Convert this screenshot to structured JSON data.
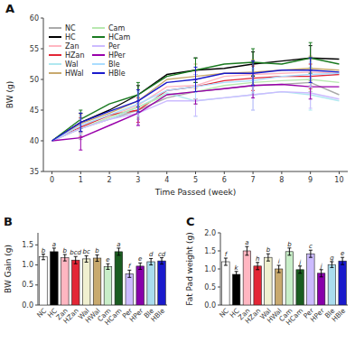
{
  "chart_data": [
    {
      "type": "line",
      "title": "A",
      "xlabel": "Time Passed (week)",
      "ylabel": "BW (g)",
      "x": [
        0,
        1,
        2,
        3,
        4,
        5,
        6,
        7,
        8,
        9,
        10
      ],
      "xlim": [
        -0.3,
        10.3
      ],
      "xticks": [
        0,
        1,
        2,
        3,
        4,
        5,
        6,
        7,
        8,
        9,
        10
      ],
      "ylim": [
        35,
        60
      ],
      "yticks": [
        35,
        40,
        45,
        50,
        55,
        60
      ],
      "legend": "upper-left",
      "series": [
        {
          "name": "NC",
          "color": "#aaaaaa",
          "values": [
            40.0,
            42.0,
            43.5,
            45.0,
            47.0,
            48.0,
            48.5,
            49.0,
            49.2,
            49.5,
            47.5
          ],
          "errors": [
            null,
            1.8,
            null,
            1.5,
            null,
            1.5,
            null,
            1.5,
            null,
            1.5,
            null
          ]
        },
        {
          "name": "HC",
          "color": "#000000",
          "values": [
            40.0,
            43.0,
            45.0,
            47.5,
            50.8,
            51.5,
            51.8,
            52.5,
            53.0,
            53.5,
            53.3
          ],
          "errors": [
            null,
            1.5,
            null,
            1.5,
            null,
            2.0,
            null,
            2.0,
            null,
            2.0,
            null
          ]
        },
        {
          "name": "Zan",
          "color": "#ffb6c1",
          "values": [
            40.0,
            42.5,
            44.0,
            45.8,
            48.8,
            49.0,
            50.5,
            50.8,
            51.0,
            51.2,
            51.0
          ],
          "errors": [
            null,
            1.5,
            null,
            1.8,
            null,
            2.2,
            null,
            2.0,
            null,
            2.2,
            null
          ]
        },
        {
          "name": "HZan",
          "color": "#e32636",
          "values": [
            40.0,
            42.2,
            44.2,
            45.0,
            48.2,
            48.8,
            49.8,
            50.2,
            50.5,
            50.5,
            50.8
          ],
          "errors": [
            null,
            1.5,
            null,
            2.0,
            null,
            2.0,
            null,
            2.0,
            null,
            2.0,
            null
          ]
        },
        {
          "name": "Wal",
          "color": "#b0e8f0",
          "values": [
            40.0,
            42.0,
            43.5,
            45.5,
            47.8,
            46.5,
            47.0,
            47.5,
            48.0,
            47.5,
            46.5
          ],
          "errors": [
            null,
            1.5,
            null,
            2.0,
            null,
            2.5,
            null,
            2.5,
            null,
            2.5,
            null
          ]
        },
        {
          "name": "HWal",
          "color": "#c8a96e",
          "values": [
            40.0,
            42.8,
            44.5,
            46.5,
            50.0,
            50.5,
            51.0,
            51.2,
            51.5,
            51.8,
            51.5
          ],
          "errors": [
            null,
            1.5,
            null,
            1.8,
            null,
            2.0,
            null,
            2.0,
            null,
            2.0,
            null
          ]
        },
        {
          "name": "Cam",
          "color": "#b8e8b0",
          "values": [
            40.0,
            42.0,
            43.8,
            45.5,
            47.5,
            48.0,
            49.0,
            49.5,
            49.8,
            50.0,
            49.5
          ],
          "errors": [
            null,
            1.5,
            null,
            1.8,
            null,
            2.0,
            null,
            2.0,
            null,
            2.0,
            null
          ]
        },
        {
          "name": "HCam",
          "color": "#1a7a20",
          "values": [
            40.0,
            43.5,
            46.0,
            47.5,
            50.5,
            51.5,
            52.5,
            52.8,
            52.5,
            53.5,
            52.5
          ],
          "errors": [
            null,
            1.5,
            null,
            2.0,
            null,
            2.0,
            null,
            2.2,
            null,
            2.5,
            null
          ]
        },
        {
          "name": "Per",
          "color": "#ccbbff",
          "values": [
            40.0,
            42.0,
            43.5,
            44.5,
            46.5,
            46.5,
            47.0,
            47.5,
            48.0,
            47.8,
            46.8
          ],
          "errors": [
            null,
            1.5,
            null,
            2.0,
            null,
            2.5,
            null,
            2.5,
            null,
            2.5,
            null
          ]
        },
        {
          "name": "HPer",
          "color": "#9900aa",
          "values": [
            40.0,
            40.5,
            42.5,
            44.5,
            47.5,
            48.0,
            48.5,
            49.0,
            49.2,
            48.8,
            48.8
          ],
          "errors": [
            null,
            2.0,
            null,
            2.0,
            null,
            2.0,
            null,
            2.0,
            null,
            2.0,
            null
          ]
        },
        {
          "name": "Ble",
          "color": "#aaddff",
          "values": [
            40.0,
            42.5,
            44.2,
            46.0,
            48.2,
            48.8,
            49.5,
            49.8,
            50.5,
            50.8,
            51.0
          ],
          "errors": [
            null,
            1.5,
            null,
            2.0,
            null,
            2.0,
            null,
            2.0,
            null,
            2.0,
            null
          ]
        },
        {
          "name": "HBle",
          "color": "#1a1acc",
          "values": [
            40.0,
            43.0,
            44.8,
            46.5,
            49.5,
            50.0,
            51.0,
            51.0,
            51.5,
            51.5,
            51.2
          ],
          "errors": [
            null,
            1.5,
            null,
            1.8,
            null,
            2.0,
            null,
            2.0,
            null,
            2.0,
            null
          ]
        }
      ]
    },
    {
      "type": "bar",
      "title": "B",
      "ylabel": "BW Gain (g)",
      "categories": [
        "NC",
        "HC",
        "Zan",
        "HZan",
        "Wal",
        "HWal",
        "Cam",
        "HCam",
        "Per",
        "HPer",
        "Ble",
        "HBle"
      ],
      "values": [
        1.2,
        1.33,
        1.18,
        1.12,
        1.15,
        1.17,
        0.96,
        1.33,
        0.78,
        0.97,
        1.08,
        1.1
      ],
      "errors": [
        0.07,
        0.09,
        0.08,
        0.09,
        0.08,
        0.08,
        0.07,
        0.09,
        0.09,
        0.08,
        0.08,
        0.08
      ],
      "annotations": [
        "b",
        "a",
        "b",
        "bcd",
        "bc",
        "b",
        "e",
        "a",
        "f",
        "e",
        "d",
        "cd"
      ],
      "colors": [
        "#ffffff",
        "#000000",
        "#ffb6c1",
        "#e32636",
        "#f0f0d0",
        "#c8a96e",
        "#c8eec8",
        "#1a5c20",
        "#ccbbff",
        "#8800aa",
        "#aaddee",
        "#1a1acc"
      ],
      "ylim": [
        0,
        1.8
      ],
      "yticks": [
        {
          "value": 0,
          "label": "0.0"
        },
        0.5,
        {
          "value": 1,
          "label": "1.0"
        },
        1.5
      ]
    },
    {
      "type": "bar",
      "title": "C",
      "ylabel": "Fat Pad weight (g)",
      "categories": [
        "NC",
        "HC",
        "Zan",
        "HZan",
        "Wal",
        "HWal",
        "Cam",
        "HCam",
        "Per",
        "HPer",
        "Ble",
        "HBle"
      ],
      "values": [
        1.2,
        0.85,
        1.5,
        1.08,
        1.32,
        1.0,
        1.48,
        0.98,
        1.42,
        0.88,
        1.12,
        1.22
      ],
      "errors": [
        0.1,
        0.08,
        0.12,
        0.1,
        0.1,
        0.1,
        0.1,
        0.1,
        0.1,
        0.1,
        0.08,
        0.1
      ],
      "annotations": [
        "f",
        "k",
        "a",
        "h",
        "b",
        "i",
        "b",
        "j",
        "c",
        "j",
        "g",
        "e"
      ],
      "colors": [
        "#ffffff",
        "#000000",
        "#ffb6c1",
        "#e32636",
        "#f0f0d0",
        "#c8a96e",
        "#c8eec8",
        "#1a5c20",
        "#ccbbff",
        "#8800aa",
        "#aaddee",
        "#1a1acc"
      ],
      "ylim": [
        0,
        2
      ],
      "yticks": [
        {
          "value": 0,
          "label": "0.0"
        },
        0.5,
        {
          "value": 1,
          "label": "1.0"
        },
        1.5,
        {
          "value": 2,
          "label": "2.0"
        }
      ]
    }
  ]
}
